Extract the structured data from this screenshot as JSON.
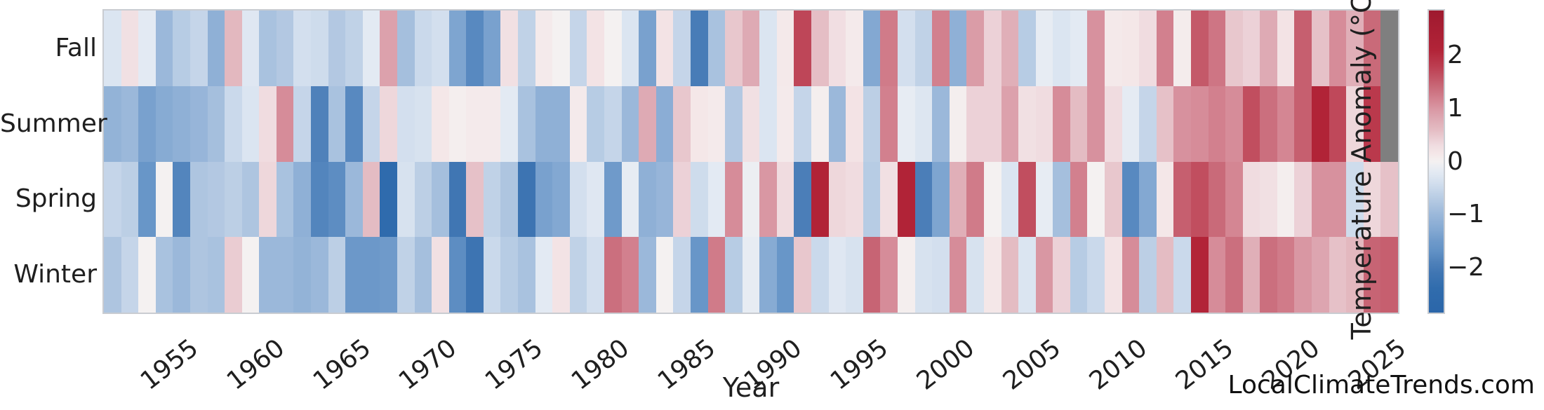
{
  "footer": {
    "text": "LocalClimateTrends.com"
  },
  "chart_data": {
    "type": "heatmap",
    "title": "",
    "xlabel": "Year",
    "ylabel": "",
    "rows": [
      "Fall",
      "Summer",
      "Spring",
      "Winter"
    ],
    "year_start": 1951,
    "year_end": 2025,
    "x_tick_labels": [
      "1955",
      "1960",
      "1965",
      "1970",
      "1975",
      "1980",
      "1985",
      "1990",
      "1995",
      "2000",
      "2005",
      "2010",
      "2015",
      "2020",
      "2025"
    ],
    "grid": false,
    "legend_position": "right-colorbar",
    "colorbar": {
      "label": "Temperature Anomaly (°C)",
      "ticks": [
        "2",
        "1",
        "0",
        "−1",
        "−2"
      ],
      "tick_values": [
        2,
        1,
        0,
        -1,
        -2
      ],
      "vmin": -2.85,
      "vmax": 2.85
    },
    "missing_color": "#7f7f7f",
    "colormap_stops": [
      [
        -2.85,
        "#2b66a9"
      ],
      [
        -2.4,
        "#306cad"
      ],
      [
        -2.1,
        "#4076b3"
      ],
      [
        -1.9,
        "#4f81ba"
      ],
      [
        -1.7,
        "#6191c5"
      ],
      [
        -1.5,
        "#6f9aca"
      ],
      [
        -1.3,
        "#83a8d2"
      ],
      [
        -1.0,
        "#9bb8da"
      ],
      [
        -0.8,
        "#aec5e0"
      ],
      [
        -0.6,
        "#c0d2e7"
      ],
      [
        -0.4,
        "#d3dfee"
      ],
      [
        -0.2,
        "#e3eaf3"
      ],
      [
        0.0,
        "#f4f1f1"
      ],
      [
        0.15,
        "#f4e7e8"
      ],
      [
        0.3,
        "#f0dce0"
      ],
      [
        0.45,
        "#eaccd2"
      ],
      [
        0.6,
        "#e4bcc3"
      ],
      [
        0.8,
        "#deaab4"
      ],
      [
        1.0,
        "#d997a3"
      ],
      [
        1.2,
        "#d2808e"
      ],
      [
        1.4,
        "#c96a79"
      ],
      [
        1.6,
        "#c25364"
      ],
      [
        1.8,
        "#bc3d50"
      ],
      [
        2.1,
        "#b22438"
      ],
      [
        2.5,
        "#a81e33"
      ],
      [
        2.85,
        "#9e1a2f"
      ]
    ],
    "series": [
      {
        "name": "Fall",
        "values": [
          -0.3,
          0.25,
          -0.2,
          -1.0,
          -0.7,
          -0.55,
          -1.15,
          0.65,
          -0.25,
          -0.85,
          -0.75,
          -0.4,
          -0.45,
          -0.75,
          -0.6,
          -0.2,
          0.9,
          -0.9,
          -0.5,
          -0.4,
          -1.35,
          -1.8,
          -1.4,
          0.25,
          -0.6,
          0.1,
          0.0,
          -0.55,
          0.2,
          0.0,
          -0.3,
          -1.4,
          0.2,
          -0.55,
          -2.0,
          -0.85,
          0.5,
          0.8,
          -0.3,
          0.12,
          1.72,
          0.58,
          0.27,
          0.1,
          -1.3,
          1.25,
          -0.4,
          -0.6,
          1.2,
          -1.15,
          0.95,
          0.4,
          0.75,
          -0.7,
          -0.15,
          -0.3,
          -0.2,
          1.05,
          0.12,
          0.15,
          0.3,
          1.2,
          0.08,
          1.55,
          1.3,
          0.5,
          0.4,
          0.8,
          0.2,
          1.5,
          0.55,
          1.1,
          0.75,
          1.4,
          null
        ]
      },
      {
        "name": "Summer",
        "values": [
          -1.1,
          -1.0,
          -1.4,
          -1.25,
          -1.15,
          -1.05,
          -0.9,
          -0.5,
          -0.3,
          0.3,
          1.1,
          -0.55,
          -1.9,
          -0.85,
          -1.8,
          -0.55,
          0.35,
          -0.4,
          -0.35,
          0.15,
          0.05,
          0.1,
          0.1,
          -0.2,
          -0.85,
          -1.15,
          -1.15,
          0.1,
          -0.7,
          -0.55,
          -1.0,
          0.8,
          -1.2,
          0.5,
          0.15,
          0.1,
          -0.75,
          0.25,
          -0.3,
          0.1,
          -0.55,
          0.05,
          -1.0,
          0.2,
          -0.65,
          1.2,
          -0.15,
          -0.28,
          -1.0,
          0.05,
          0.4,
          0.4,
          0.9,
          0.25,
          0.3,
          1.1,
          0.6,
          1.05,
          0.3,
          -0.18,
          -0.55,
          0.55,
          1.05,
          1.1,
          1.2,
          1.1,
          1.65,
          1.35,
          1.15,
          1.5,
          2.15,
          1.7,
          0.35,
          1.85,
          null
        ]
      },
      {
        "name": "Spring",
        "values": [
          -0.55,
          -0.65,
          -1.6,
          0.0,
          -1.85,
          -0.8,
          -0.75,
          -0.65,
          -0.8,
          0.35,
          -0.85,
          -1.15,
          -1.85,
          -1.75,
          -1.0,
          0.6,
          -2.45,
          -0.35,
          -0.65,
          -0.9,
          -2.1,
          0.55,
          -0.6,
          -0.8,
          -2.15,
          -1.4,
          -1.3,
          -0.4,
          -0.25,
          -1.5,
          -0.15,
          -1.15,
          -1.05,
          0.4,
          -0.45,
          -0.2,
          1.1,
          -0.1,
          1.0,
          0.3,
          -1.95,
          2.15,
          0.35,
          0.3,
          -0.7,
          0.25,
          2.15,
          -1.95,
          -1.35,
          0.75,
          1.25,
          0.0,
          -0.3,
          1.65,
          -0.15,
          -0.9,
          1.2,
          0.0,
          0.5,
          -1.8,
          -1.3,
          0.15,
          1.5,
          1.65,
          1.4,
          1.15,
          0.3,
          0.25,
          0.05,
          0.4,
          1.05,
          1.05,
          -0.45,
          0.35,
          0.55
        ]
      },
      {
        "name": "Winter",
        "values": [
          -0.8,
          -0.55,
          0.0,
          -0.85,
          -1.0,
          -0.8,
          -0.85,
          0.45,
          0.0,
          -1.0,
          -1.0,
          -1.1,
          -1.0,
          -0.65,
          -1.55,
          -1.55,
          -1.5,
          -0.6,
          -0.9,
          0.25,
          -1.75,
          -2.15,
          -0.5,
          -0.7,
          -0.85,
          -0.2,
          0.2,
          -0.6,
          -0.4,
          1.35,
          1.2,
          -1.0,
          0.0,
          -0.55,
          -1.6,
          1.25,
          -0.7,
          -0.15,
          -1.25,
          -1.6,
          0.5,
          -0.5,
          -0.25,
          -0.35,
          1.45,
          1.1,
          0.05,
          -0.35,
          -0.4,
          1.1,
          -0.35,
          0.15,
          0.6,
          -0.3,
          1.0,
          0.4,
          -0.7,
          -0.5,
          0.2,
          1.1,
          -0.65,
          0.6,
          -0.5,
          2.1,
          1.1,
          1.35,
          0.75,
          1.35,
          1.25,
          1.0,
          0.85,
          0.55,
          0.65,
          1.45,
          1.5
        ]
      }
    ]
  }
}
